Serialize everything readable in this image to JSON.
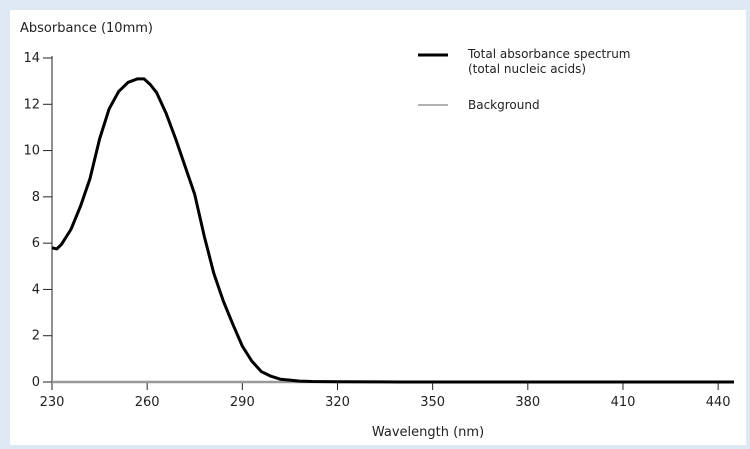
{
  "chart_data": {
    "type": "line",
    "ylabel": "Absorbance (10mm)",
    "xlabel": "Wavelength (nm)",
    "xlim": [
      230,
      445
    ],
    "ylim": [
      0,
      14
    ],
    "x_ticks": [
      230,
      260,
      290,
      320,
      350,
      380,
      410,
      440
    ],
    "y_ticks": [
      0,
      2,
      4,
      6,
      8,
      10,
      12,
      14
    ],
    "grid": false,
    "legend_position": "top-right",
    "series": [
      {
        "name": "Total absorbance spectrum",
        "name_line2": "(total nucleic acids)",
        "color": "#000000",
        "x": [
          230,
          231.5,
          233,
          236,
          239,
          242,
          245,
          248,
          251,
          254,
          257,
          259,
          261,
          263,
          266,
          269,
          272,
          275,
          278,
          281,
          284,
          287,
          290,
          293,
          296,
          299,
          302,
          305,
          308,
          312,
          320,
          340,
          360,
          380,
          400,
          420,
          440,
          445
        ],
        "y": [
          5.8,
          5.75,
          5.95,
          6.6,
          7.6,
          8.8,
          10.5,
          11.8,
          12.55,
          12.95,
          13.1,
          13.1,
          12.85,
          12.5,
          11.6,
          10.5,
          9.3,
          8.1,
          6.3,
          4.7,
          3.5,
          2.5,
          1.55,
          0.9,
          0.45,
          0.25,
          0.12,
          0.08,
          0.04,
          0.02,
          0.01,
          0,
          0,
          0,
          0,
          0,
          0,
          0
        ]
      },
      {
        "name": "Background",
        "color": "#999999",
        "x": [
          230,
          445
        ],
        "y": [
          0,
          0
        ]
      }
    ]
  }
}
